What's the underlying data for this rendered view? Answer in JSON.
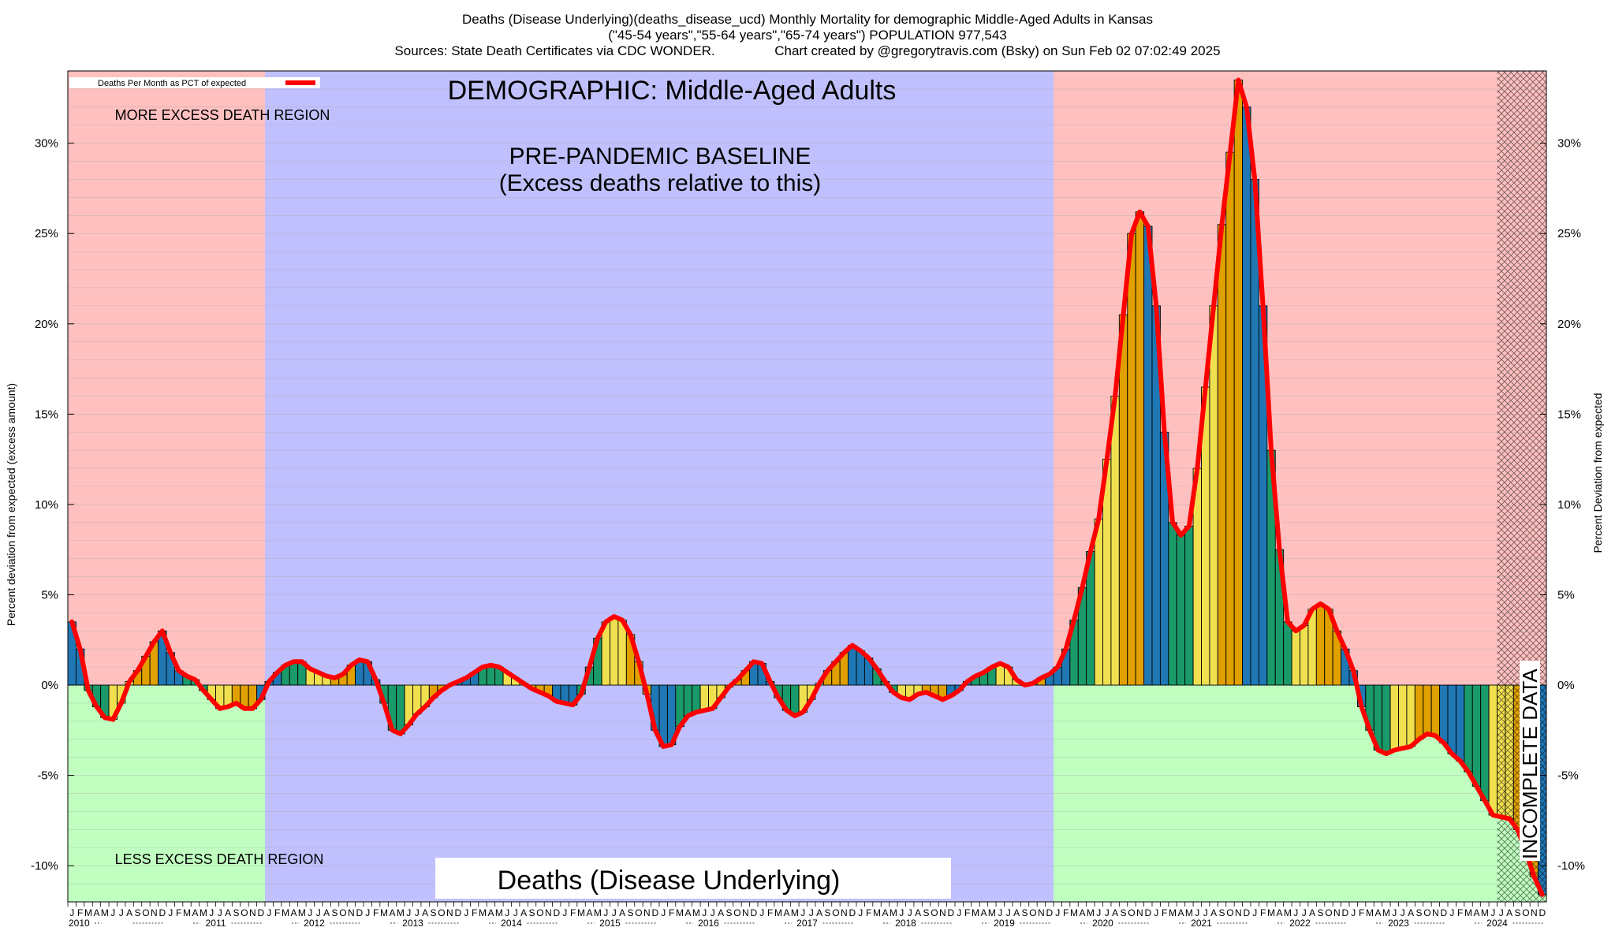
{
  "header": {
    "line1": "Deaths (Disease Underlying)(deaths_disease_ucd) Monthly Mortality for demographic Middle-Aged Adults in Kansas",
    "line2": "(\"45-54 years\",\"55-64 years\",\"65-74 years\") POPULATION 977,543",
    "line3": "Sources: State Death Certificates via CDC WONDER.                Chart created by @gregorytravis.com (Bsky) on Sun Feb 02 07:02:49 2025"
  },
  "chart_data": {
    "type": "bar",
    "title": "DEMOGRAPHIC: Middle-Aged Adults",
    "ylabel": "Percent deviation from expected (excess amount)",
    "ylabel_right": "Percent Deviation from expected",
    "ylim": [
      -12,
      34
    ],
    "yticks": [
      "-10%",
      "-5%",
      "0%",
      "5%",
      "10%",
      "15%",
      "20%",
      "25%",
      "30%"
    ],
    "ytick_values": [
      -10,
      -5,
      0,
      5,
      10,
      15,
      20,
      25,
      30
    ],
    "legend": {
      "label": "Deaths Per Month as PCT of expected",
      "placement": "top-left"
    },
    "annotations": {
      "more_excess": "MORE EXCESS DEATH REGION",
      "less_excess": "LESS EXCESS DEATH REGION",
      "baseline_1": "PRE-PANDEMIC BASELINE",
      "baseline_2": "(Excess deaths relative to this)",
      "incomplete": "INCOMPLETE DATA",
      "bottom_label": "Deaths (Disease Underlying)"
    },
    "start": "2010-01",
    "baseline_period": [
      "2012-01",
      "2019-12"
    ],
    "incomplete_from": "2024-07",
    "month_letters": [
      "J",
      "F",
      "M",
      "A",
      "M",
      "J",
      "J",
      "A",
      "S",
      "O",
      "N",
      "D"
    ],
    "years": [
      "2010",
      "2011",
      "2012",
      "2013",
      "2014",
      "2015",
      "2016",
      "2017",
      "2018",
      "2019",
      "2020",
      "2021",
      "2022",
      "2023",
      "2024"
    ],
    "colors": {
      "excess_bg": "#ffc0c0",
      "deficit_bg": "#c0ffc0",
      "baseline_bg": "#c0c0ff",
      "line": "#ff0000",
      "bar_winter": "#1f77b4",
      "bar_spring": "#1a9a6a",
      "bar_summer": "#f0e050",
      "bar_fall": "#e0a000"
    },
    "values": [
      3.5,
      2.0,
      -0.3,
      -1.2,
      -1.8,
      -1.9,
      -1.0,
      0.2,
      0.8,
      1.6,
      2.4,
      3.0,
      1.8,
      0.8,
      0.5,
      0.3,
      -0.3,
      -0.8,
      -1.3,
      -1.2,
      -1.0,
      -1.3,
      -1.3,
      -0.8,
      0.2,
      0.7,
      1.1,
      1.3,
      1.3,
      0.9,
      0.7,
      0.5,
      0.4,
      0.6,
      1.1,
      1.4,
      1.3,
      0.3,
      -1.0,
      -2.5,
      -2.7,
      -2.2,
      -1.6,
      -1.2,
      -0.7,
      -0.3,
      0.0,
      0.2,
      0.4,
      0.7,
      1.0,
      1.1,
      1.0,
      0.7,
      0.4,
      0.1,
      -0.2,
      -0.4,
      -0.6,
      -0.9,
      -1.0,
      -1.1,
      -0.5,
      1.0,
      2.6,
      3.5,
      3.8,
      3.6,
      2.8,
      1.3,
      -0.5,
      -2.5,
      -3.4,
      -3.3,
      -2.3,
      -1.7,
      -1.5,
      -1.4,
      -1.3,
      -0.7,
      -0.1,
      0.3,
      0.8,
      1.3,
      1.2,
      0.2,
      -0.7,
      -1.4,
      -1.7,
      -1.5,
      -0.8,
      0.1,
      0.8,
      1.3,
      1.8,
      2.2,
      1.9,
      1.5,
      0.9,
      0.2,
      -0.4,
      -0.7,
      -0.8,
      -0.5,
      -0.4,
      -0.6,
      -0.8,
      -0.6,
      -0.3,
      0.2,
      0.5,
      0.7,
      1.0,
      1.2,
      1.0,
      0.3,
      0.0,
      0.1,
      0.4,
      0.6,
      1.0,
      2.0,
      3.6,
      5.4,
      7.4,
      9.2,
      12.5,
      16.0,
      20.5,
      25.0,
      26.2,
      25.4,
      21.0,
      14.0,
      9.0,
      8.3,
      8.8,
      12.0,
      16.5,
      21.0,
      25.5,
      29.5,
      33.5,
      32.0,
      28.0,
      21.0,
      13.0,
      7.5,
      3.5,
      3.0,
      3.3,
      4.2,
      4.5,
      4.2,
      3.0,
      2.0,
      0.8,
      -1.2,
      -2.5,
      -3.6,
      -3.8,
      -3.6,
      -3.5,
      -3.4,
      -3.0,
      -2.7,
      -2.8,
      -3.2,
      -3.8,
      -4.2,
      -4.8,
      -5.6,
      -6.4,
      -7.2,
      -7.3,
      -7.4,
      -8.0,
      -9.2,
      -10.6,
      -11.6
    ]
  }
}
